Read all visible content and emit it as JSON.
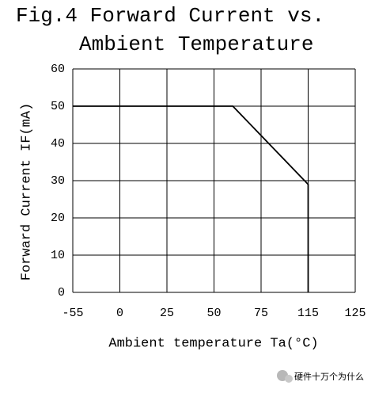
{
  "chart_data": {
    "type": "line",
    "title": [
      "Fig.4 Forward Current vs.",
      "Ambient Temperature"
    ],
    "x_label": "Ambient temperature Ta(°C)",
    "y_label": "Forward Current IF(mA)",
    "x": [
      -55,
      60,
      115,
      115
    ],
    "values": [
      50,
      50,
      29,
      0
    ],
    "color": "#000000",
    "xlim": [
      -55,
      125
    ],
    "xticks": [
      -55,
      0,
      25,
      50,
      75,
      115,
      125
    ],
    "ylim": [
      0,
      60
    ],
    "yticks": [
      0,
      10,
      20,
      30,
      40,
      50,
      60
    ],
    "grid": true,
    "annotation": "硬件十万个为什么"
  }
}
